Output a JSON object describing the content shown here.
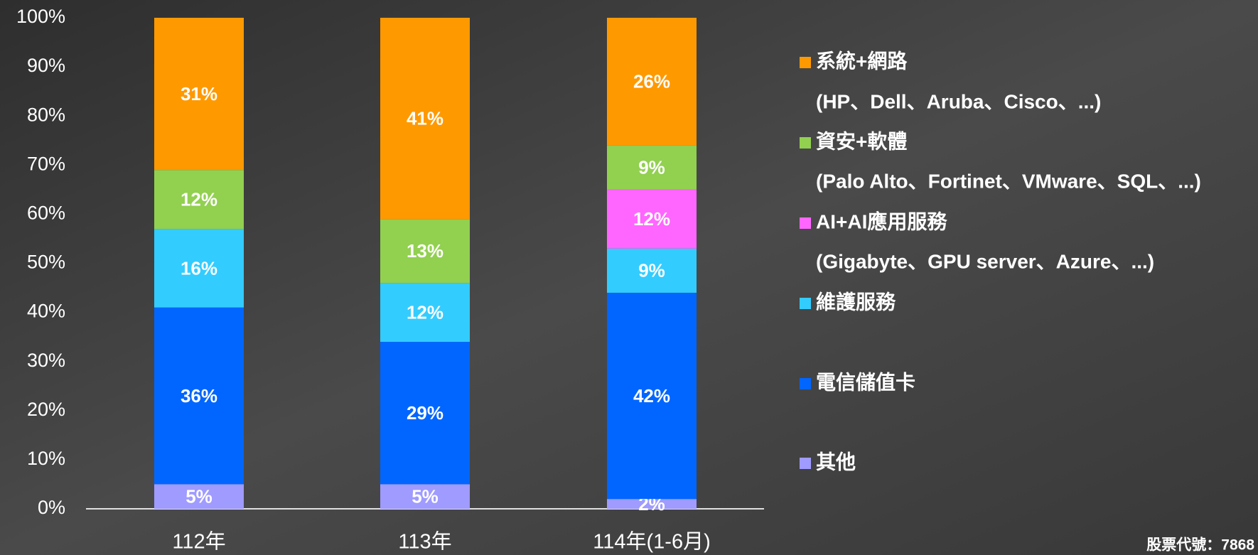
{
  "chart_data": {
    "type": "stacked_bar",
    "categories": [
      "112年",
      "113年",
      "114年(1-6月)"
    ],
    "ylim": [
      0,
      100
    ],
    "yticks": [
      {
        "value": 0,
        "label": "0%"
      },
      {
        "value": 10,
        "label": "10%"
      },
      {
        "value": 20,
        "label": "20%"
      },
      {
        "value": 30,
        "label": "30%"
      },
      {
        "value": 40,
        "label": "40%"
      },
      {
        "value": 50,
        "label": "50%"
      },
      {
        "value": 60,
        "label": "60%"
      },
      {
        "value": 70,
        "label": "70%"
      },
      {
        "value": 80,
        "label": "80%"
      },
      {
        "value": 90,
        "label": "90%"
      },
      {
        "value": 100,
        "label": "100%"
      }
    ],
    "legend": "right",
    "series": [
      {
        "name": "其他",
        "color": "#9f9bff",
        "values": [
          5,
          5,
          2
        ],
        "value_labels": [
          "5%",
          "5%",
          "2%"
        ]
      },
      {
        "name": "電信儲值卡",
        "color": "#0066ff",
        "values": [
          36,
          29,
          42
        ],
        "value_labels": [
          "36%",
          "29%",
          "42%"
        ]
      },
      {
        "name": "維護服務",
        "color": "#33ccff",
        "values": [
          16,
          12,
          9
        ],
        "value_labels": [
          "16%",
          "12%",
          "9%"
        ]
      },
      {
        "name": "AI+AI應用服務",
        "color": "#ff66ff",
        "values": [
          null,
          null,
          12
        ],
        "value_labels": [
          null,
          null,
          "12%"
        ],
        "description": "(Gigabyte、GPU server、Azure、...)"
      },
      {
        "name": "資安+軟體",
        "color": "#92d050",
        "values": [
          12,
          13,
          9
        ],
        "value_labels": [
          "12%",
          "13%",
          "9%"
        ],
        "description": "(Palo Alto、Fortinet、VMware、SQL、...)"
      },
      {
        "name": "系統+網路",
        "color": "#ff9900",
        "values": [
          31,
          41,
          26
        ],
        "value_labels": [
          "31%",
          "41%",
          "26%"
        ],
        "description": "(HP、Dell、Aruba、Cisco、...)"
      }
    ],
    "footnote": "股票代號：7868"
  }
}
